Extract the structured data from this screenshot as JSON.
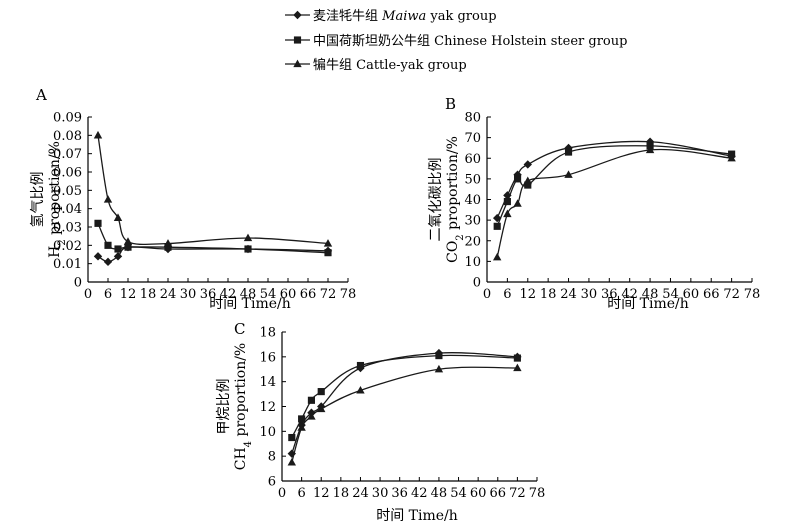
{
  "legend": {
    "entries": [
      {
        "cn": "麦洼牦牛组",
        "en_italic": "Maiwa",
        "en_rest": " yak group",
        "marker": "diamond"
      },
      {
        "cn": "中国荷斯坦奶公牛组",
        "en_italic": "",
        "en_rest": "Chinese Holstein steer group",
        "marker": "square"
      },
      {
        "cn": "犏牛组",
        "en_italic": "",
        "en_rest": "Cattle-yak group",
        "marker": "triangle"
      }
    ]
  },
  "line_color": "#1a1a1a",
  "chart_data": [
    {
      "type": "line",
      "panel_label": "A",
      "ylabel_cn": "氢气比例",
      "ylabel_en_pre": "H",
      "ylabel_en_sub": "2",
      "ylabel_en_post": " proportion/%",
      "xlabel": "时间  Time/h",
      "xlim": [
        0,
        78
      ],
      "ylim": [
        0,
        0.09
      ],
      "xticks": [
        "0",
        "6",
        "12",
        "18",
        "24",
        "30",
        "36",
        "42",
        "48",
        "54",
        "60",
        "66",
        "72",
        "78"
      ],
      "yticks": [
        "0",
        "0.01",
        "0.02",
        "0.03",
        "0.04",
        "0.05",
        "0.06",
        "0.07",
        "0.08",
        "0.09"
      ],
      "series": [
        {
          "marker": "diamond",
          "x": [
            3,
            6,
            9,
            12,
            24,
            48,
            72
          ],
          "y": [
            0.014,
            0.011,
            0.014,
            0.019,
            0.018,
            0.018,
            0.017
          ]
        },
        {
          "marker": "square",
          "x": [
            3,
            6,
            9,
            12,
            24,
            48,
            72
          ],
          "y": [
            0.032,
            0.02,
            0.018,
            0.019,
            0.019,
            0.018,
            0.016
          ]
        },
        {
          "marker": "triangle",
          "x": [
            3,
            6,
            9,
            12,
            24,
            48,
            72
          ],
          "y": [
            0.08,
            0.045,
            0.035,
            0.022,
            0.021,
            0.024,
            0.021
          ]
        }
      ]
    },
    {
      "type": "line",
      "panel_label": "B",
      "ylabel_cn": "二氧化碳比例",
      "ylabel_en_pre": "CO",
      "ylabel_en_sub": "2",
      "ylabel_en_post": " proportion/%",
      "xlabel": "时间  Time/h",
      "xlim": [
        0,
        78
      ],
      "ylim": [
        0,
        80
      ],
      "xticks": [
        "0",
        "6",
        "12",
        "18",
        "24",
        "30",
        "36",
        "42",
        "48",
        "54",
        "60",
        "66",
        "72",
        "78"
      ],
      "yticks": [
        "0",
        "10",
        "20",
        "30",
        "40",
        "50",
        "60",
        "70",
        "80"
      ],
      "series": [
        {
          "marker": "diamond",
          "x": [
            3,
            6,
            9,
            12,
            24,
            48,
            72
          ],
          "y": [
            31,
            42,
            52,
            57,
            65,
            68,
            61
          ]
        },
        {
          "marker": "square",
          "x": [
            3,
            6,
            9,
            12,
            24,
            48,
            72
          ],
          "y": [
            27,
            39,
            50,
            47,
            63,
            66,
            62
          ]
        },
        {
          "marker": "triangle",
          "x": [
            3,
            6,
            9,
            12,
            24,
            48,
            72
          ],
          "y": [
            12,
            33,
            38,
            49,
            52,
            64,
            60
          ]
        }
      ]
    },
    {
      "type": "line",
      "panel_label": "C",
      "ylabel_cn": "甲烷比例",
      "ylabel_en_pre": "CH",
      "ylabel_en_sub": "4",
      "ylabel_en_post": " proportion/%",
      "xlabel": "时间  Time/h",
      "xlim": [
        0,
        78
      ],
      "ylim": [
        6,
        18
      ],
      "xticks": [
        "0",
        "6",
        "12",
        "18",
        "24",
        "30",
        "36",
        "42",
        "48",
        "54",
        "60",
        "66",
        "72",
        "78"
      ],
      "yticks": [
        "6",
        "8",
        "10",
        "12",
        "14",
        "16",
        "18"
      ],
      "series": [
        {
          "marker": "diamond",
          "x": [
            3,
            6,
            9,
            12,
            24,
            48,
            72
          ],
          "y": [
            8.2,
            10.5,
            11.5,
            12.0,
            15.1,
            16.3,
            16.0
          ]
        },
        {
          "marker": "square",
          "x": [
            3,
            6,
            9,
            12,
            24,
            48,
            72
          ],
          "y": [
            9.5,
            11.0,
            12.5,
            13.2,
            15.3,
            16.1,
            15.9
          ]
        },
        {
          "marker": "triangle",
          "x": [
            3,
            6,
            9,
            12,
            24,
            48,
            72
          ],
          "y": [
            7.5,
            10.3,
            11.2,
            11.8,
            13.3,
            15.0,
            15.1
          ]
        }
      ]
    }
  ]
}
